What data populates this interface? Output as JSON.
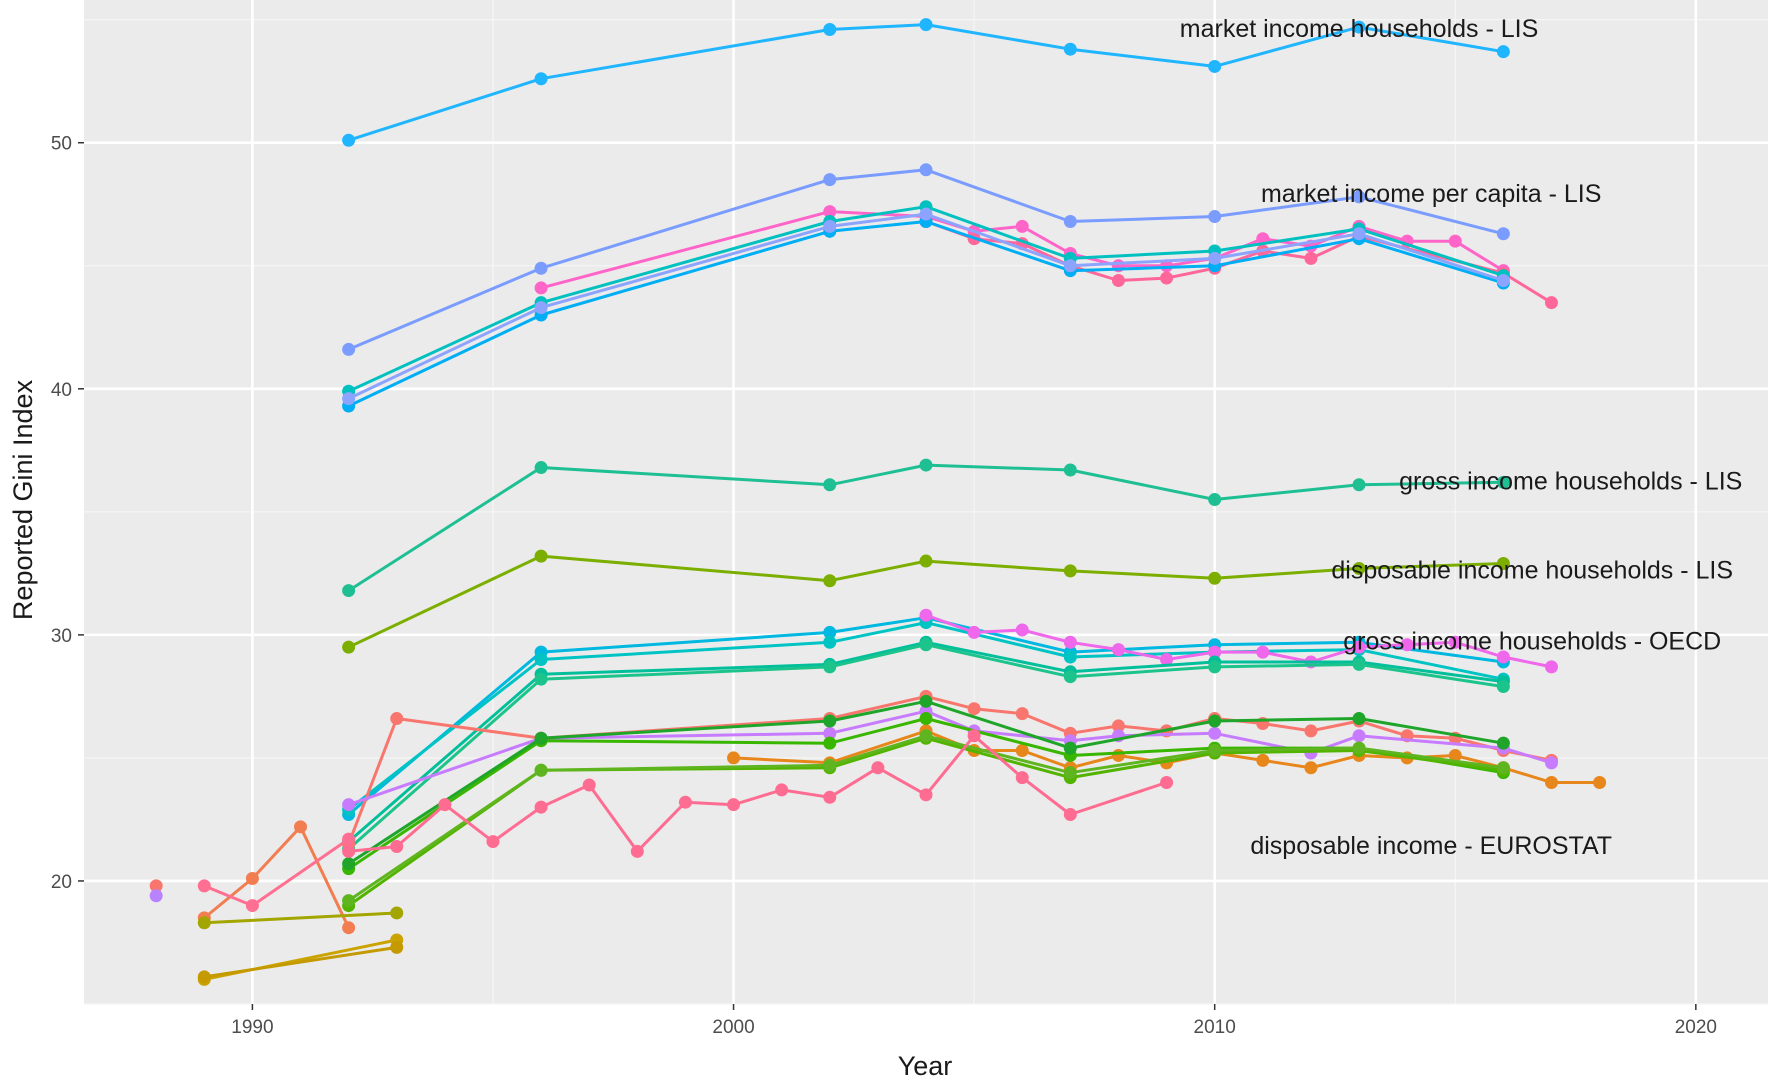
{
  "chart_data": {
    "type": "line",
    "title": "",
    "xlabel": "Year",
    "ylabel": "Reported Gini Index",
    "xlim": [
      1986.5,
      2021.5
    ],
    "ylim": [
      15,
      55.8
    ],
    "xticks": [
      1990,
      2000,
      2010,
      2020
    ],
    "yticks": [
      20,
      30,
      40,
      50
    ],
    "grid": true,
    "legend": "none",
    "annotations": [
      {
        "text": "market income households - LIS",
        "x": 2013,
        "y": 54.3
      },
      {
        "text": "market income per capita - LIS",
        "x": 2014.5,
        "y": 47.6
      },
      {
        "text": "gross income households - LIS",
        "x": 2017.4,
        "y": 35.9
      },
      {
        "text": "disposable income households - LIS",
        "x": 2016.6,
        "y": 32.3
      },
      {
        "text": "gross income households - OECD",
        "x": 2016.6,
        "y": 29.4
      },
      {
        "text": "disposable income - EUROSTAT",
        "x": 2014.5,
        "y": 21.1
      }
    ],
    "series": [
      {
        "color": "#1fb5ff",
        "points": [
          [
            1992,
            50.1
          ],
          [
            1996,
            52.6
          ],
          [
            2002,
            54.6
          ],
          [
            2004,
            54.8
          ],
          [
            2007,
            53.8
          ],
          [
            2010,
            53.1
          ],
          [
            2013,
            54.7
          ],
          [
            2016,
            53.7
          ]
        ]
      },
      {
        "color": "#7a9cff",
        "points": [
          [
            1992,
            41.6
          ],
          [
            1996,
            44.9
          ],
          [
            2002,
            48.5
          ],
          [
            2004,
            48.9
          ],
          [
            2007,
            46.8
          ],
          [
            2010,
            47.0
          ],
          [
            2013,
            47.8
          ],
          [
            2016,
            46.3
          ]
        ]
      },
      {
        "color": "#ff64c8",
        "points": [
          [
            1996,
            44.1
          ],
          [
            2002,
            47.2
          ],
          [
            2004,
            47.0
          ],
          [
            2005,
            46.4
          ],
          [
            2006,
            46.6
          ],
          [
            2007,
            45.5
          ],
          [
            2008,
            45.0
          ],
          [
            2009,
            45.0
          ],
          [
            2010,
            45.3
          ],
          [
            2011,
            46.1
          ],
          [
            2012,
            45.8
          ],
          [
            2013,
            46.6
          ],
          [
            2014,
            46.0
          ],
          [
            2015,
            46.0
          ],
          [
            2016,
            44.8
          ]
        ]
      },
      {
        "color": "#ff6699",
        "points": [
          [
            2004,
            46.8
          ],
          [
            2005,
            46.1
          ],
          [
            2006,
            45.9
          ],
          [
            2007,
            45.0
          ],
          [
            2008,
            44.4
          ],
          [
            2009,
            44.5
          ],
          [
            2010,
            44.9
          ],
          [
            2011,
            45.6
          ],
          [
            2012,
            45.3
          ],
          [
            2013,
            46.2
          ],
          [
            2016,
            44.7
          ],
          [
            2017,
            43.5
          ]
        ]
      },
      {
        "color": "#00c1c0",
        "points": [
          [
            1992,
            39.9
          ],
          [
            1996,
            43.5
          ],
          [
            2002,
            46.8
          ],
          [
            2004,
            47.4
          ],
          [
            2007,
            45.3
          ],
          [
            2010,
            45.6
          ],
          [
            2013,
            46.5
          ],
          [
            2016,
            44.6
          ]
        ]
      },
      {
        "color": "#00aef4",
        "points": [
          [
            1992,
            39.3
          ],
          [
            1996,
            43.0
          ],
          [
            2002,
            46.4
          ],
          [
            2004,
            46.8
          ],
          [
            2007,
            44.8
          ],
          [
            2010,
            45.0
          ],
          [
            2013,
            46.1
          ],
          [
            2016,
            44.3
          ]
        ]
      },
      {
        "color": "#8ca4ff",
        "points": [
          [
            1992,
            39.6
          ],
          [
            1996,
            43.3
          ],
          [
            2002,
            46.6
          ],
          [
            2004,
            47.1
          ],
          [
            2007,
            45.0
          ],
          [
            2010,
            45.3
          ],
          [
            2013,
            46.3
          ],
          [
            2016,
            44.4
          ]
        ]
      },
      {
        "color": "#1fbf94",
        "points": [
          [
            1992,
            31.8
          ],
          [
            1996,
            36.8
          ],
          [
            2002,
            36.1
          ],
          [
            2004,
            36.9
          ],
          [
            2007,
            36.7
          ],
          [
            2010,
            35.5
          ],
          [
            2013,
            36.1
          ],
          [
            2016,
            36.2
          ]
        ]
      },
      {
        "color": "#7cae00",
        "points": [
          [
            1992,
            29.5
          ],
          [
            1996,
            33.2
          ],
          [
            2002,
            32.2
          ],
          [
            2004,
            33.0
          ],
          [
            2007,
            32.6
          ],
          [
            2010,
            32.3
          ],
          [
            2013,
            32.7
          ],
          [
            2016,
            32.9
          ]
        ]
      },
      {
        "color": "#00b8e0",
        "points": [
          [
            1992,
            22.7
          ],
          [
            1996,
            29.3
          ],
          [
            2002,
            30.1
          ],
          [
            2004,
            30.7
          ],
          [
            2007,
            29.3
          ],
          [
            2010,
            29.6
          ],
          [
            2013,
            29.7
          ],
          [
            2016,
            28.9
          ]
        ]
      },
      {
        "color": "#00c4c4",
        "points": [
          [
            1992,
            22.9
          ],
          [
            1996,
            29.0
          ],
          [
            2002,
            29.7
          ],
          [
            2004,
            30.5
          ],
          [
            2007,
            29.1
          ],
          [
            2010,
            29.3
          ],
          [
            2013,
            29.4
          ],
          [
            2016,
            28.2
          ]
        ]
      },
      {
        "color": "#ef67eb",
        "points": [
          [
            2004,
            30.8
          ],
          [
            2005,
            30.1
          ],
          [
            2006,
            30.2
          ],
          [
            2007,
            29.7
          ],
          [
            2008,
            29.4
          ],
          [
            2009,
            29.0
          ],
          [
            2010,
            29.3
          ],
          [
            2011,
            29.3
          ],
          [
            2012,
            28.9
          ],
          [
            2013,
            29.5
          ],
          [
            2014,
            29.6
          ],
          [
            2015,
            29.7
          ],
          [
            2016,
            29.1
          ],
          [
            2017,
            28.7
          ]
        ]
      },
      {
        "color": "#00bf9a",
        "points": [
          [
            1992,
            21.6
          ],
          [
            1996,
            28.4
          ],
          [
            2002,
            28.8
          ],
          [
            2004,
            29.7
          ],
          [
            2007,
            28.5
          ],
          [
            2010,
            28.9
          ],
          [
            2013,
            28.9
          ],
          [
            2016,
            28.1
          ]
        ]
      },
      {
        "color": "#1cc48c",
        "points": [
          [
            1992,
            21.3
          ],
          [
            1996,
            28.2
          ],
          [
            2002,
            28.7
          ],
          [
            2004,
            29.6
          ],
          [
            2007,
            28.3
          ],
          [
            2010,
            28.7
          ],
          [
            2013,
            28.8
          ],
          [
            2016,
            27.9
          ]
        ]
      },
      {
        "color": "#f8766d",
        "points": [
          [
            1992,
            21.5
          ],
          [
            1993,
            26.6
          ],
          [
            1996,
            25.8
          ],
          [
            2002,
            26.6
          ],
          [
            2004,
            27.5
          ],
          [
            2005,
            27.0
          ],
          [
            2006,
            26.8
          ],
          [
            2007,
            26.0
          ],
          [
            2008,
            26.3
          ],
          [
            2009,
            26.1
          ],
          [
            2010,
            26.6
          ],
          [
            2011,
            26.4
          ],
          [
            2012,
            26.1
          ],
          [
            2013,
            26.5
          ],
          [
            2014,
            25.9
          ],
          [
            2015,
            25.8
          ],
          [
            2016,
            25.3
          ],
          [
            2017,
            24.9
          ]
        ]
      },
      {
        "color": "#c77cff",
        "points": [
          [
            1992,
            23.1
          ],
          [
            1996,
            25.8
          ],
          [
            2002,
            26.0
          ],
          [
            2004,
            26.9
          ],
          [
            2005,
            26.1
          ],
          [
            2007,
            25.7
          ],
          [
            2008,
            25.9
          ],
          [
            2010,
            26.0
          ],
          [
            2012,
            25.2
          ],
          [
            2013,
            25.9
          ],
          [
            2016,
            25.4
          ],
          [
            2017,
            24.8
          ]
        ]
      },
      {
        "color": "#e7861b",
        "points": [
          [
            2000,
            25.0
          ],
          [
            2002,
            24.8
          ],
          [
            2004,
            26.1
          ],
          [
            2005,
            25.3
          ],
          [
            2006,
            25.3
          ],
          [
            2007,
            24.6
          ],
          [
            2008,
            25.1
          ],
          [
            2009,
            24.8
          ],
          [
            2010,
            25.2
          ],
          [
            2011,
            24.9
          ],
          [
            2012,
            24.6
          ],
          [
            2013,
            25.1
          ],
          [
            2014,
            25.0
          ],
          [
            2015,
            25.1
          ],
          [
            2016,
            24.6
          ],
          [
            2017,
            24.0
          ],
          [
            2018,
            24.0
          ]
        ]
      },
      {
        "color": "#39b600",
        "points": [
          [
            1992,
            20.5
          ],
          [
            1996,
            25.7
          ],
          [
            2002,
            25.6
          ],
          [
            2004,
            26.6
          ],
          [
            2007,
            25.1
          ],
          [
            2010,
            25.4
          ],
          [
            2013,
            25.4
          ],
          [
            2016,
            24.4
          ]
        ]
      },
      {
        "color": "#1ea52a",
        "points": [
          [
            1992,
            20.7
          ],
          [
            1996,
            25.8
          ],
          [
            2002,
            26.5
          ],
          [
            2004,
            27.3
          ],
          [
            2007,
            25.4
          ],
          [
            2010,
            26.5
          ],
          [
            2013,
            26.6
          ],
          [
            2016,
            25.6
          ]
        ]
      },
      {
        "color": "#53b400",
        "points": [
          [
            1992,
            19.0
          ],
          [
            1996,
            24.5
          ],
          [
            2002,
            24.6
          ],
          [
            2004,
            25.8
          ],
          [
            2007,
            24.2
          ],
          [
            2010,
            25.2
          ],
          [
            2013,
            25.3
          ],
          [
            2016,
            24.5
          ]
        ]
      },
      {
        "color": "#5fb51f",
        "points": [
          [
            1992,
            19.2
          ],
          [
            1996,
            24.5
          ],
          [
            2002,
            24.7
          ],
          [
            2004,
            25.9
          ],
          [
            2007,
            24.4
          ],
          [
            2010,
            25.3
          ],
          [
            2013,
            25.4
          ],
          [
            2016,
            24.6
          ]
        ]
      },
      {
        "color": "#ff6c91",
        "points": [
          [
            1992,
            21.2
          ],
          [
            1993,
            21.4
          ],
          [
            1994,
            23.1
          ],
          [
            1995,
            21.6
          ],
          [
            1996,
            23.0
          ],
          [
            1997,
            23.9
          ],
          [
            1998,
            21.2
          ],
          [
            1999,
            23.2
          ],
          [
            2000,
            23.1
          ],
          [
            2001,
            23.7
          ],
          [
            2002,
            23.4
          ],
          [
            2003,
            24.6
          ],
          [
            2004,
            23.5
          ],
          [
            2005,
            25.9
          ],
          [
            2006,
            24.2
          ],
          [
            2007,
            22.7
          ],
          [
            2009,
            24.0
          ]
        ]
      },
      {
        "color": "#f17d50",
        "points": [
          [
            1989,
            18.5
          ],
          [
            1990,
            20.1
          ],
          [
            1991,
            22.2
          ],
          [
            1992,
            18.1
          ]
        ]
      },
      {
        "color": "#ff6f91",
        "points": [
          [
            1989,
            19.8
          ],
          [
            1990,
            19.0
          ],
          [
            1992,
            21.7
          ]
        ]
      },
      {
        "color": "#a3a500",
        "points": [
          [
            1989,
            18.3
          ],
          [
            1993,
            18.7
          ]
        ]
      },
      {
        "color": "#cba300",
        "points": [
          [
            1989,
            16.0
          ],
          [
            1993,
            17.6
          ]
        ]
      },
      {
        "color": "#c49a00",
        "points": [
          [
            1989,
            16.1
          ],
          [
            1993,
            17.3
          ]
        ]
      },
      {
        "color": "#f8766d",
        "points": [
          [
            1988,
            19.8
          ]
        ]
      },
      {
        "color": "#b983ff",
        "points": [
          [
            1988,
            19.4
          ]
        ]
      }
    ]
  }
}
